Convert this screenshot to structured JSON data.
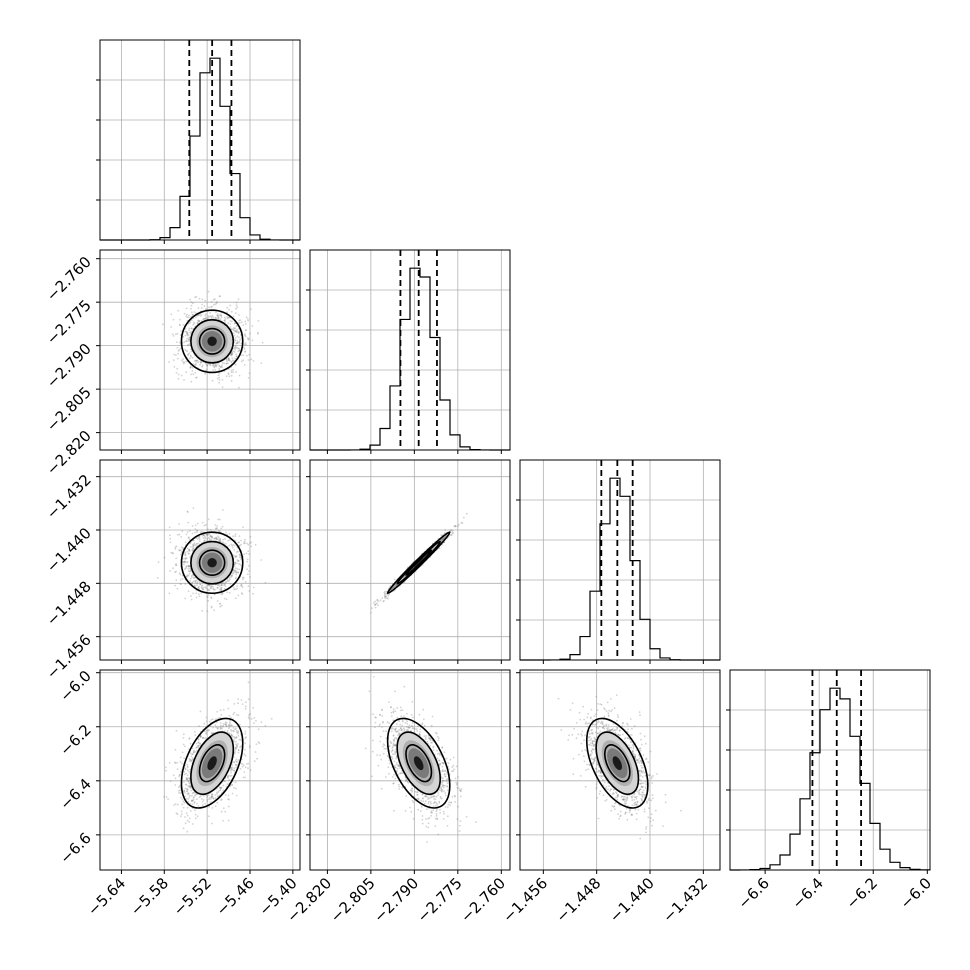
{
  "chart_data": {
    "type": "corner",
    "n_params": 4,
    "grid": true,
    "colors": {
      "hist": "#000000",
      "scatter": "#808080",
      "grid": "#b0b0b0",
      "background": "#ffffff"
    },
    "params": [
      {
        "range": [
          -5.67,
          -5.39
        ],
        "ticks": [
          -5.64,
          -5.58,
          -5.52,
          -5.46,
          -5.4
        ],
        "tick_labels": [
          "−5.64",
          "−5.58",
          "−5.52",
          "−5.46",
          "−5.40"
        ],
        "quantiles": [
          -5.545,
          -5.513,
          -5.486
        ],
        "mean": -5.513,
        "sd": 0.022
      },
      {
        "range": [
          -2.826,
          -2.757
        ],
        "ticks": [
          -2.82,
          -2.805,
          -2.79,
          -2.775,
          -2.76
        ],
        "tick_labels": [
          "−2.820",
          "−2.805",
          "−2.790",
          "−2.775",
          "−2.760"
        ],
        "quantiles": [
          -2.7948,
          -2.7885,
          -2.7822
        ],
        "mean": -2.7885,
        "sd": 0.0055
      },
      {
        "range": [
          -1.4595,
          -1.4295
        ],
        "ticks": [
          -1.456,
          -1.448,
          -1.44,
          -1.432
        ],
        "tick_labels": [
          "−1.456",
          "−1.448",
          "−1.440",
          "−1.432"
        ],
        "quantiles": [
          -1.4473,
          -1.4449,
          -1.4426
        ],
        "mean": -1.4449,
        "sd": 0.00235
      },
      {
        "range": [
          -6.73,
          -5.99
        ],
        "ticks": [
          -6.6,
          -6.4,
          -6.2,
          -6.0
        ],
        "tick_labels": [
          "−6.6",
          "−6.4",
          "−6.2",
          "−6.0"
        ],
        "quantiles": [
          -6.425,
          -6.335,
          -6.245
        ],
        "mean": -6.335,
        "sd": 0.085
      }
    ],
    "correlations": [
      {
        "row": 1,
        "col": 0,
        "rho": 0.0
      },
      {
        "row": 2,
        "col": 0,
        "rho": 0.0
      },
      {
        "row": 2,
        "col": 1,
        "rho": 0.99
      },
      {
        "row": 3,
        "col": 0,
        "rho": 0.45
      },
      {
        "row": 3,
        "col": 1,
        "rho": -0.5
      },
      {
        "row": 3,
        "col": 2,
        "rho": -0.5
      }
    ],
    "y_tick_labels_shown_for_rows": [
      1,
      2,
      3
    ],
    "x_tick_labels_shown_for_bottom_row": true
  }
}
